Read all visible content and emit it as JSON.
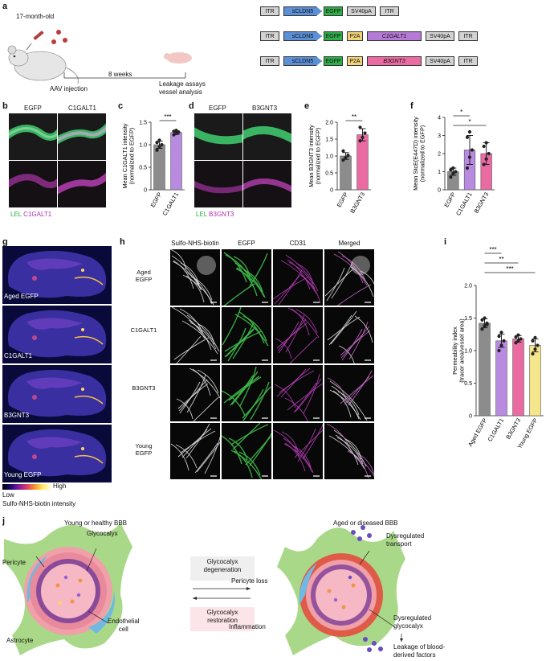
{
  "panels": {
    "a": "a",
    "b": "b",
    "c": "c",
    "d": "d",
    "e": "e",
    "f": "f",
    "g": "g",
    "h": "h",
    "i": "i",
    "j": "j"
  },
  "panel_a": {
    "mouse_age": "17-month-old",
    "timeline": "8 weeks",
    "injection": "AAV injection",
    "endpoint_line1": "Leakage assays",
    "endpoint_line2": "vessel analysis",
    "constructs": [
      [
        "ITR",
        "sCLDN5",
        "EGFP",
        "SV40pA",
        "ITR"
      ],
      [
        "ITR",
        "sCLDN5",
        "EGFP",
        "P2A",
        "C1GALT1",
        "SV40pA",
        "ITR"
      ],
      [
        "ITR",
        "sCLDN5",
        "EGFP",
        "P2A",
        "B3GNT3",
        "SV40pA",
        "ITR"
      ]
    ],
    "colors": {
      "promoter": "#5b8fd6",
      "egfp": "#2fae4a",
      "p2a": "#f3d37a",
      "c1galt1": "#b47ad6",
      "b3gnt3": "#ea6aa2",
      "gray": "#d3d3d3"
    }
  },
  "panel_b": {
    "col1": "EGFP",
    "col2": "C1GALT1",
    "legend_lel": "LEL",
    "legend_gene": "C1GALT1"
  },
  "panel_d": {
    "col1": "EGFP",
    "col2": "B3GNT3",
    "legend_lel": "LEL",
    "legend_gene": "B3GNT3"
  },
  "panel_g": {
    "labels": [
      "Aged EGFP",
      "C1GALT1",
      "B3GNT3",
      "Young EGFP"
    ],
    "scale_low": "Low",
    "scale_high": "High",
    "scale_title": "Sulfo-NHS-biotin intensity"
  },
  "panel_h": {
    "columns": [
      "Sulfo-NHS-biotin",
      "EGFP",
      "CD31",
      "Merged"
    ],
    "rows": [
      [
        "Aged",
        "EGFP"
      ],
      [
        "C1GALT1"
      ],
      [
        "B3GNT3"
      ],
      [
        "Young",
        "EGFP"
      ]
    ]
  },
  "panel_j": {
    "left_title": "Young or healthy BBB",
    "right_title": "Aged or diseased BBB",
    "glycocalyx": "Glycocalyx",
    "pericyte": "Pericyte",
    "endothelial1": "Endothelial",
    "endothelial2": "cell",
    "astrocyte": "Astrocyte",
    "degen1": "Glycocalyx",
    "degen2": "degeneration",
    "resto1": "Glycocalyx",
    "resto2": "restoration",
    "pericyte_loss": "Pericyte loss",
    "dysreg_transport1": "Dysregulated",
    "dysreg_transport2": "transport",
    "inflammation": "Inflammation",
    "dysreg_glyco1": "Dysregulated",
    "dysreg_glyco2": "glycocalyx",
    "leak1": "Leakage of blood-",
    "leak2": "derived factors"
  },
  "chart_data": [
    {
      "panel": "c",
      "type": "bar",
      "categories": [
        "EGFP",
        "C1GALT1"
      ],
      "values": [
        1.0,
        1.27
      ],
      "errors": [
        0.08,
        0.04
      ],
      "points": [
        [
          0.88,
          0.95,
          1.0,
          1.05,
          1.1
        ],
        [
          1.22,
          1.25,
          1.28,
          1.3,
          1.32
        ]
      ],
      "colors": [
        "#8c8c8c",
        "#b98be0"
      ],
      "ylabel": "Mean C1GALT1 intensity\n(normalized to EGFP)",
      "ylim": [
        0,
        1.5
      ],
      "yticks": [
        "0",
        "0.5",
        "1.0",
        "1.5"
      ],
      "significance": [
        {
          "pair": [
            0,
            1
          ],
          "label": "***"
        }
      ]
    },
    {
      "panel": "e",
      "type": "bar",
      "categories": [
        "EGFP",
        "B3GNT3"
      ],
      "values": [
        1.0,
        1.63
      ],
      "errors": [
        0.1,
        0.18
      ],
      "points": [
        [
          0.88,
          0.95,
          1.02,
          1.15
        ],
        [
          1.45,
          1.55,
          1.68,
          1.85
        ]
      ],
      "colors": [
        "#8c8c8c",
        "#ea6aa2"
      ],
      "ylabel": "Mean B3GNT3 intensity\n(normalized to EGFP)",
      "ylim": [
        0,
        2.0
      ],
      "yticks": [
        "0",
        "0.5",
        "1.0",
        "1.5",
        "2.0"
      ],
      "significance": [
        {
          "pair": [
            0,
            1
          ],
          "label": "**"
        }
      ]
    },
    {
      "panel": "f",
      "type": "bar",
      "categories": [
        "EGFP",
        "C1GALT1",
        "B3GNT3"
      ],
      "values": [
        1.0,
        2.2,
        2.0
      ],
      "errors": [
        0.2,
        0.8,
        0.6
      ],
      "points": [
        [
          0.7,
          0.9,
          1.0,
          1.1,
          1.2
        ],
        [
          1.2,
          1.8,
          2.2,
          2.9,
          3.2
        ],
        [
          1.4,
          1.7,
          2.0,
          2.4,
          2.6
        ]
      ],
      "colors": [
        "#8c8c8c",
        "#b98be0",
        "#ea6aa2"
      ],
      "ylabel": "Mean StcE(E447D) intensity\n(normalized to EGFP)",
      "ylim": [
        0,
        4
      ],
      "yticks": [
        "0",
        "1",
        "2",
        "3",
        "4"
      ],
      "significance": [
        {
          "pair": [
            0,
            1
          ],
          "label": "*"
        },
        {
          "pair": [
            0,
            2
          ],
          "label": "*"
        }
      ]
    },
    {
      "panel": "i",
      "type": "bar",
      "categories": [
        "Aged EGFP",
        "C1GALT1",
        "B3GNT3",
        "Young EGFP"
      ],
      "values": [
        1.42,
        1.15,
        1.18,
        1.08
      ],
      "errors": [
        0.07,
        0.1,
        0.05,
        0.1
      ],
      "points": [
        [
          1.33,
          1.38,
          1.42,
          1.47,
          1.5,
          1.4
        ],
        [
          1.0,
          1.08,
          1.15,
          1.22,
          1.28
        ],
        [
          1.12,
          1.15,
          1.18,
          1.21,
          1.24
        ],
        [
          0.95,
          1.02,
          1.08,
          1.15,
          1.2
        ]
      ],
      "colors": [
        "#8c8c8c",
        "#b98be0",
        "#ea6aa2",
        "#f5e68c"
      ],
      "ylabel": "Permeability index\n(tracer area/vessel area)",
      "ylim": [
        0,
        2.0
      ],
      "yticks": [
        "0",
        "0.5",
        "1.0",
        "1.5",
        "2.0"
      ],
      "significance": [
        {
          "pair": [
            0,
            1
          ],
          "label": "***"
        },
        {
          "pair": [
            0,
            2
          ],
          "label": "**"
        },
        {
          "pair": [
            0,
            3
          ],
          "label": "***"
        }
      ]
    }
  ]
}
